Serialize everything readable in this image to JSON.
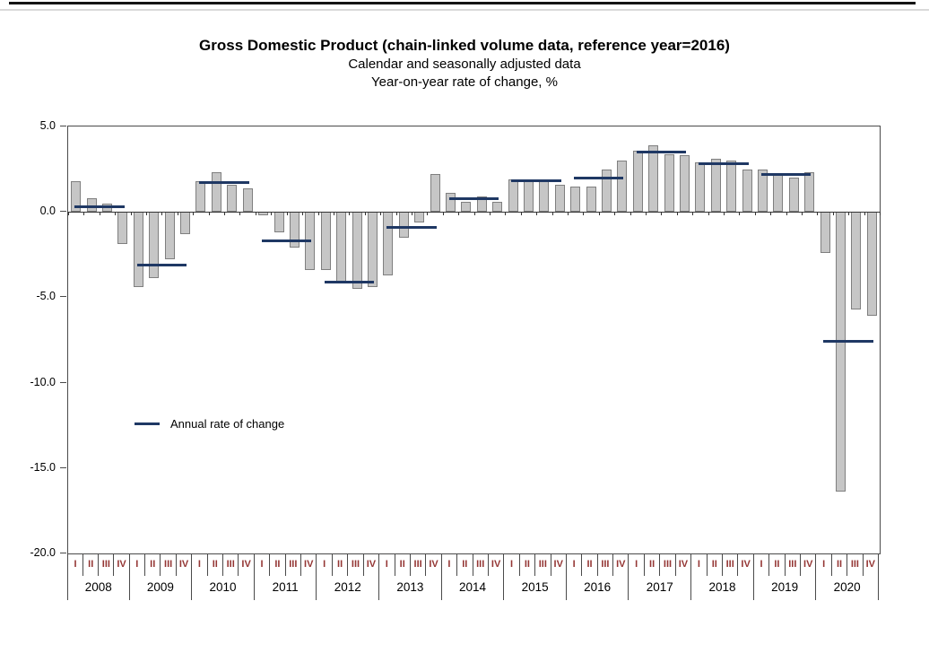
{
  "page": {
    "title": "Gross Domestic Product (chain-linked volume data, reference year=2016)",
    "subtitle1": "Calendar and seasonally adjusted data",
    "subtitle2": "Year-on-year rate of change, %"
  },
  "legend": {
    "annual_label": "Annual rate of change"
  },
  "colors": {
    "bar_fill": "#c6c6c6",
    "bar_border": "#7f7f7f",
    "annual_line": "#1f3864",
    "quarter_label": "#943634",
    "axis": "#4a4a4a",
    "zero_line": "#333333"
  },
  "chart_data": {
    "type": "bar",
    "title": "Gross Domestic Product (chain-linked volume data, reference year=2016)",
    "subtitle": "Calendar and seasonally adjusted data",
    "ylabel": "Year-on-year rate of change, %",
    "xlabel": "",
    "ylim": [
      -20,
      5
    ],
    "yticks": [
      "5.0",
      "0.0",
      "-5.0",
      "-10.0",
      "-15.0",
      "-20.0"
    ],
    "grid": false,
    "legend_position": "inside-left",
    "quarter_labels": [
      "I",
      "II",
      "III",
      "IV"
    ],
    "years": [
      "2008",
      "2009",
      "2010",
      "2011",
      "2012",
      "2013",
      "2014",
      "2015",
      "2016",
      "2017",
      "2018",
      "2019",
      "2020"
    ],
    "series": [
      {
        "name": "Quarterly year-on-year rate of change",
        "type": "bar",
        "values_by_year": [
          [
            1.8,
            0.8,
            0.5,
            -1.9
          ],
          [
            -4.4,
            -3.9,
            -2.8,
            -1.3
          ],
          [
            1.8,
            2.3,
            1.6,
            1.4
          ],
          [
            -0.2,
            -1.2,
            -2.1,
            -3.4
          ],
          [
            -3.4,
            -4.2,
            -4.5,
            -4.4
          ],
          [
            -3.7,
            -1.5,
            -0.6,
            2.2
          ],
          [
            1.1,
            0.6,
            0.9,
            0.6
          ],
          [
            1.9,
            1.9,
            1.9,
            1.6
          ],
          [
            1.5,
            1.5,
            2.5,
            3.0
          ],
          [
            3.6,
            3.9,
            3.4,
            3.3
          ],
          [
            2.9,
            3.1,
            3.0,
            2.5
          ],
          [
            2.5,
            2.2,
            2.0,
            2.3
          ],
          [
            -2.4,
            -16.4,
            -5.7,
            -6.1
          ]
        ]
      },
      {
        "name": "Annual rate of change",
        "type": "line",
        "values": [
          0.3,
          -3.1,
          1.7,
          -1.7,
          -4.1,
          -0.9,
          0.8,
          1.8,
          2.0,
          3.5,
          2.8,
          2.2,
          -7.6
        ]
      }
    ]
  }
}
